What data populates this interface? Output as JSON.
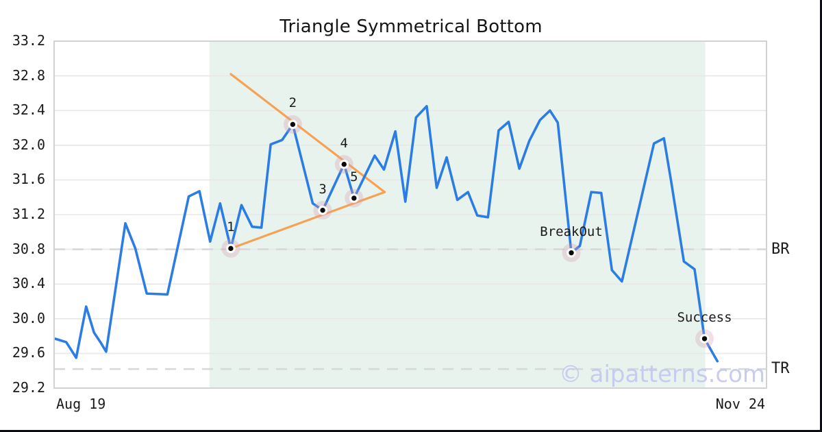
{
  "chart_data": {
    "type": "line",
    "title": "Triangle Symmetrical Bottom",
    "watermark": "© aipatterns.com",
    "x_axis": {
      "start_label": "Aug 19",
      "end_label": "Nov 24",
      "range_pct": [
        0,
        100
      ]
    },
    "y_axis": {
      "range": [
        29.2,
        33.2
      ],
      "ticks": [
        "33.2",
        "32.8",
        "32.4",
        "32.0",
        "31.6",
        "31.2",
        "30.8",
        "30.4",
        "30.0",
        "29.6",
        "29.2"
      ]
    },
    "grid": "horizontal-only",
    "highlight_region": {
      "x_start_pct": 21.8,
      "x_end_pct": 91.4
    },
    "levels": [
      {
        "label": "BR",
        "value": 30.8
      },
      {
        "label": "TR",
        "value": 29.42
      }
    ],
    "trendlines": [
      {
        "name": "upper",
        "points": [
          [
            24.8,
            32.82
          ],
          [
            46.4,
            31.46
          ]
        ]
      },
      {
        "name": "lower",
        "points": [
          [
            24.8,
            30.81
          ],
          [
            46.4,
            31.46
          ]
        ]
      }
    ],
    "series": [
      [
        0.1,
        29.77
      ],
      [
        1.7,
        29.73
      ],
      [
        3.1,
        29.55
      ],
      [
        4.5,
        30.14
      ],
      [
        5.6,
        29.84
      ],
      [
        6.5,
        29.73
      ],
      [
        7.3,
        29.62
      ],
      [
        10.0,
        31.1
      ],
      [
        11.4,
        30.81
      ],
      [
        13.0,
        30.29
      ],
      [
        15.9,
        30.28
      ],
      [
        18.9,
        31.41
      ],
      [
        20.4,
        31.47
      ],
      [
        21.9,
        30.89
      ],
      [
        23.3,
        31.33
      ],
      [
        24.8,
        30.81
      ],
      [
        26.3,
        31.31
      ],
      [
        27.8,
        31.06
      ],
      [
        29.1,
        31.05
      ],
      [
        30.4,
        32.01
      ],
      [
        32.0,
        32.06
      ],
      [
        33.5,
        32.24
      ],
      [
        36.3,
        31.33
      ],
      [
        37.7,
        31.25
      ],
      [
        40.7,
        31.78
      ],
      [
        42.1,
        31.39
      ],
      [
        45.0,
        31.88
      ],
      [
        46.3,
        31.72
      ],
      [
        47.9,
        32.16
      ],
      [
        49.3,
        31.35
      ],
      [
        50.8,
        32.32
      ],
      [
        52.3,
        32.45
      ],
      [
        53.7,
        31.51
      ],
      [
        55.1,
        31.86
      ],
      [
        56.6,
        31.37
      ],
      [
        58.1,
        31.46
      ],
      [
        59.4,
        31.19
      ],
      [
        60.9,
        31.17
      ],
      [
        62.4,
        32.17
      ],
      [
        63.8,
        32.27
      ],
      [
        65.3,
        31.73
      ],
      [
        66.7,
        32.05
      ],
      [
        68.2,
        32.29
      ],
      [
        69.6,
        32.4
      ],
      [
        70.7,
        32.26
      ],
      [
        72.6,
        30.76
      ],
      [
        73.8,
        30.84
      ],
      [
        75.4,
        31.46
      ],
      [
        76.8,
        31.45
      ],
      [
        78.3,
        30.56
      ],
      [
        79.7,
        30.43
      ],
      [
        84.2,
        32.02
      ],
      [
        85.6,
        32.08
      ],
      [
        86.6,
        31.59
      ],
      [
        88.4,
        30.66
      ],
      [
        89.9,
        30.57
      ],
      [
        91.3,
        29.77
      ],
      [
        93.1,
        29.51
      ]
    ],
    "annotations": [
      {
        "label": "1",
        "x": 24.8,
        "y": 30.81
      },
      {
        "label": "2",
        "x": 33.5,
        "y": 32.24
      },
      {
        "label": "3",
        "x": 37.7,
        "y": 31.25
      },
      {
        "label": "4",
        "x": 40.7,
        "y": 31.78
      },
      {
        "label": "5",
        "x": 42.1,
        "y": 31.39
      },
      {
        "label": "BreakOut",
        "x": 72.6,
        "y": 30.76
      },
      {
        "label": "Success",
        "x": 91.3,
        "y": 29.77
      }
    ],
    "colors": {
      "price_line": "#2b7de3",
      "trendline": "#f7a152",
      "highlight_fill": "#e8f3ee",
      "level_dash": "#d8d8d8",
      "gridline": "#e7e7e7",
      "plot_border": "#d2d2d2",
      "marker_dot": "#0a0a0a",
      "marker_ring": "#ffffff",
      "marker_halo": "rgba(219,160,175,0.32)",
      "watermark": "#c3c7f0",
      "text": "#1a1a1a"
    }
  }
}
